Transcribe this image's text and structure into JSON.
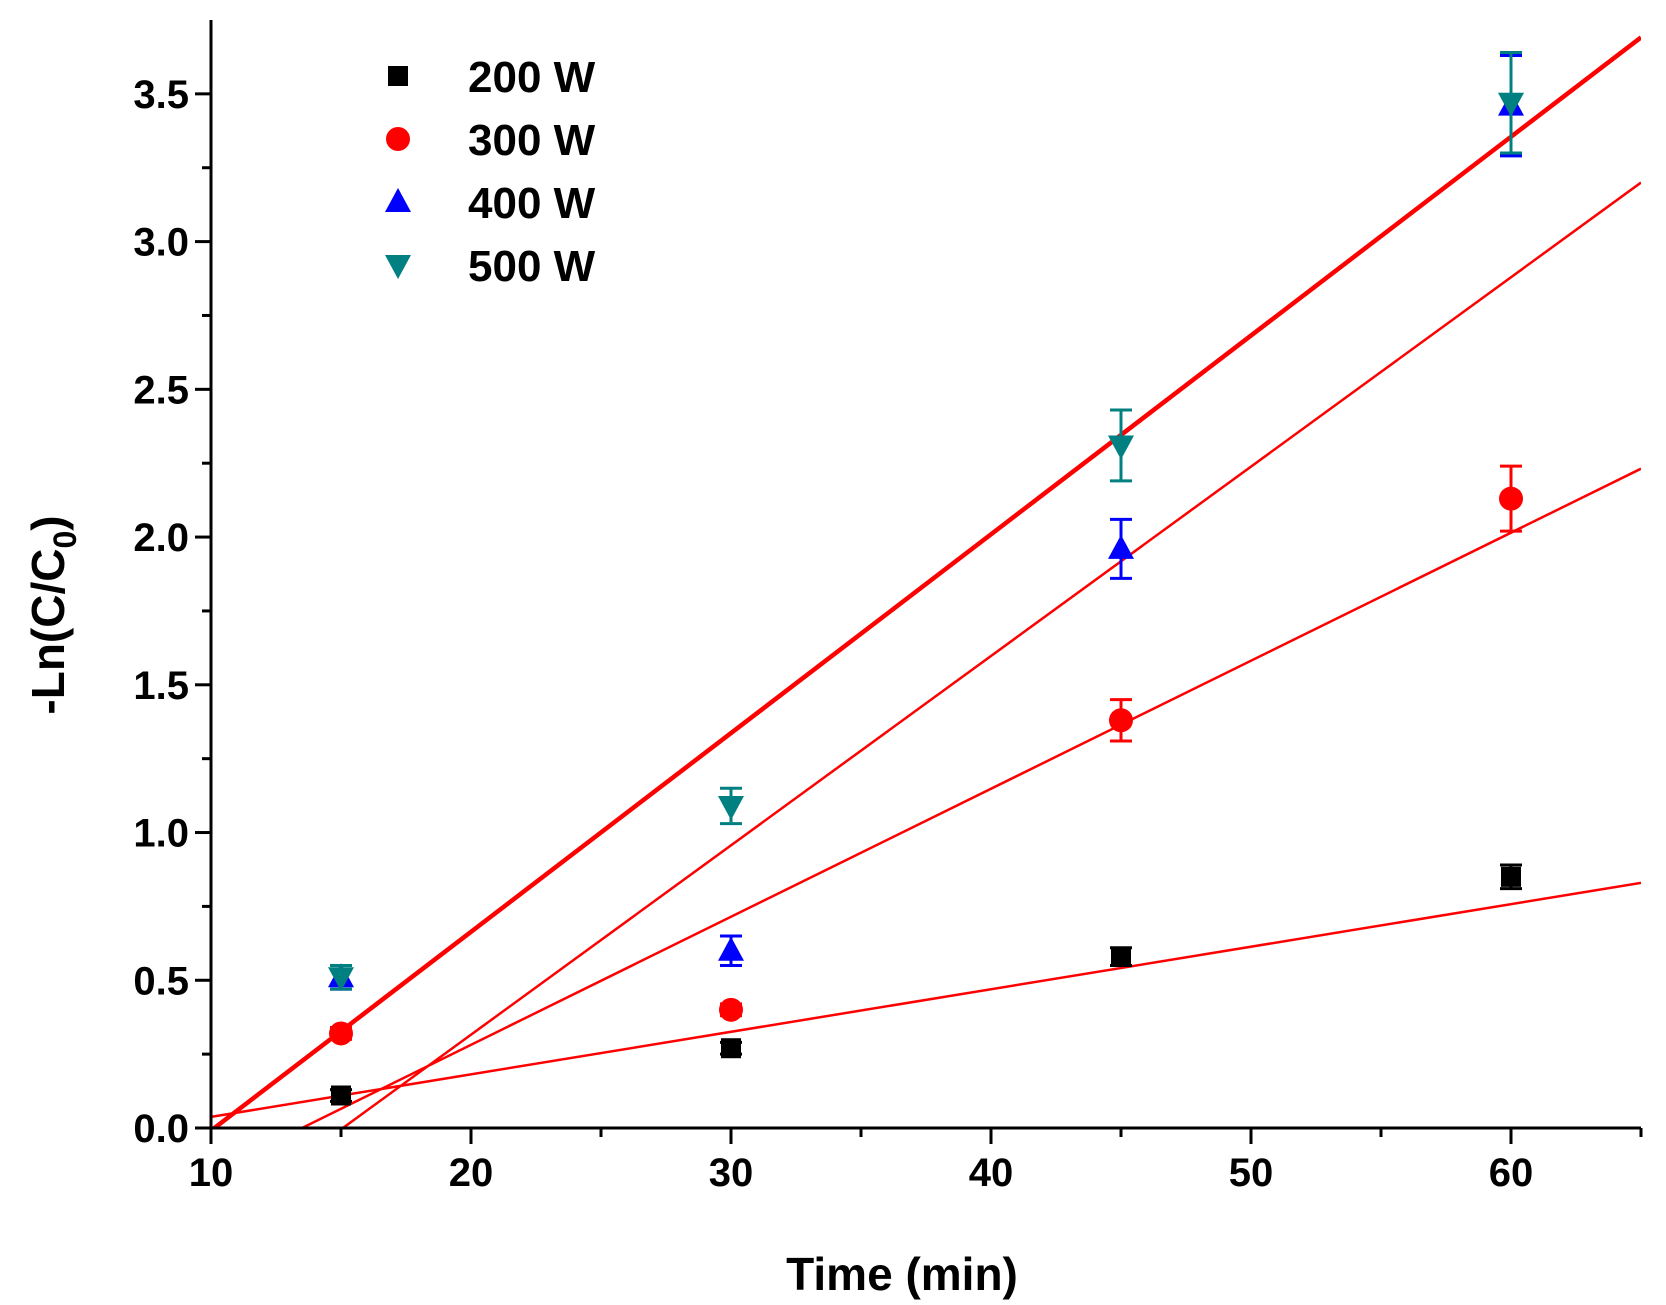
{
  "chart_data": {
    "type": "scatter",
    "xlabel": "Time (min)",
    "ylabel": {
      "prefix": "-Ln(C/C",
      "subscript": "0",
      "suffix": ")"
    },
    "xlim": [
      10,
      65
    ],
    "ylim": [
      0,
      3.75
    ],
    "xticks": [
      10,
      20,
      30,
      40,
      50,
      60
    ],
    "xtick_labels": [
      "10",
      "20",
      "30",
      "40",
      "50",
      "60"
    ],
    "yticks": [
      0,
      0.5,
      1.0,
      1.5,
      2.0,
      2.5,
      3.0,
      3.5
    ],
    "ytick_labels": [
      "0.0",
      "0.5",
      "1.0",
      "1.5",
      "2.0",
      "2.5",
      "3.0",
      "3.5"
    ],
    "legend_position": "top-left",
    "fit_line_color": "#ff0000",
    "series": [
      {
        "name": "200 W",
        "marker": "square",
        "color": "#000000",
        "x": [
          15,
          30,
          45,
          60
        ],
        "y": [
          0.11,
          0.27,
          0.58,
          0.85
        ],
        "err": [
          0.02,
          0.02,
          0.03,
          0.04
        ],
        "fit": {
          "slope": 0.0144,
          "intercept": -0.1064
        }
      },
      {
        "name": "300 W",
        "marker": "circle",
        "color": "#ff0000",
        "x": [
          15,
          30,
          45,
          60
        ],
        "y": [
          0.32,
          0.4,
          1.38,
          2.13
        ],
        "err": [
          0.02,
          0.02,
          0.07,
          0.11
        ],
        "fit": {
          "slope": 0.04333,
          "intercept": -0.585
        }
      },
      {
        "name": "400 W",
        "marker": "triangle-up",
        "color": "#0000ff",
        "x": [
          15,
          30,
          45,
          60
        ],
        "y": [
          0.51,
          0.6,
          1.96,
          3.46
        ],
        "err": [
          0.04,
          0.05,
          0.1,
          0.17
        ],
        "fit": {
          "slope": 0.06409,
          "intercept": -0.966
        }
      },
      {
        "name": "500 W",
        "marker": "triangle-down",
        "color": "#008080",
        "x": [
          15,
          30,
          45,
          60
        ],
        "y": [
          0.51,
          1.09,
          2.31,
          3.47
        ],
        "err": [
          0.04,
          0.06,
          0.12,
          0.17
        ],
        "fit": {
          "slope": 0.06727,
          "intercept": -0.6815
        }
      }
    ]
  }
}
